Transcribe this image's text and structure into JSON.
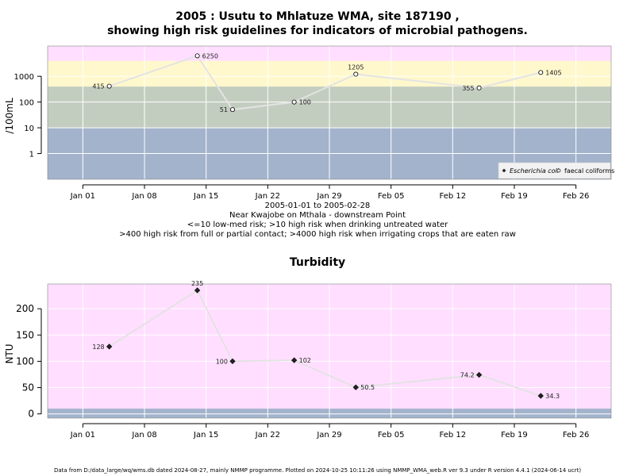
{
  "header": {
    "title_line1": "2005 : Usutu to Mhlatuze WMA, site 187190 ,",
    "title_line2": "showing high risk guidelines for indicators of microbial pathogens."
  },
  "subtitle": {
    "date_range": "2005-01-01 to 2005-02-28",
    "location": "Near Kwajobe on Mthala - downstream Point",
    "guideline1": "<=10 low-med risk; >10 high risk when drinking untreated water",
    "guideline2": ">400 high risk from full or partial contact; >4000 high risk when irrigating crops that are eaten raw"
  },
  "turbidity_title": "Turbidity",
  "footer": "Data from D:/data_large/wq/wms.db dated 2024-08-27, mainly NMMP programme. Plotted on 2024-10-25 10:11:26 using NMMP_WMA_web.R ver 9.3 under R version 4.4.1 (2024-06-14 ucrt)",
  "colors": {
    "band_low": "#a3b3cc",
    "band_mid": "#c3cdbf",
    "band_high": "#fff8cc",
    "band_top": "#ffdeff",
    "line": "#e3e3e3",
    "grid": "#ffffff",
    "axis": "#000000"
  },
  "chart_data": [
    {
      "type": "line",
      "title": "2005 : Usutu to Mhlatuze WMA, site 187190 , showing high risk guidelines for indicators of microbial pathogens.",
      "ylabel": "/100mL",
      "yscale": "log",
      "ylim": [
        0.1,
        15000
      ],
      "yticks": [
        1,
        10,
        100,
        1000
      ],
      "ytick_labels": [
        "1",
        "10",
        "100",
        "1000"
      ],
      "xlim": [
        "2004-12-28",
        "2005-03-02"
      ],
      "xticks": [
        "2005-01-01",
        "2005-01-08",
        "2005-01-15",
        "2005-01-22",
        "2005-01-29",
        "2005-02-05",
        "2005-02-12",
        "2005-02-19",
        "2005-02-26"
      ],
      "xtick_labels": [
        "Jan 01",
        "Jan 08",
        "Jan 15",
        "Jan 22",
        "Jan 29",
        "Feb 05",
        "Feb 12",
        "Feb 19",
        "Feb 26"
      ],
      "bands": [
        {
          "from": 0.1,
          "to": 10
        },
        {
          "from": 10,
          "to": 400
        },
        {
          "from": 400,
          "to": 4000
        },
        {
          "from": 4000,
          "to": 15000
        }
      ],
      "series": [
        {
          "name": "faecal coliforms",
          "marker": "open-circle",
          "points": [
            {
              "x": "2005-01-04",
              "y": 415,
              "label": "415",
              "label_side": "left"
            },
            {
              "x": "2005-01-14",
              "y": 6250,
              "label": "6250",
              "label_side": "right"
            },
            {
              "x": "2005-01-18",
              "y": 51,
              "label": "51",
              "label_side": "left"
            },
            {
              "x": "2005-01-25",
              "y": 100,
              "label": "100",
              "label_side": "right"
            },
            {
              "x": "2005-02-01",
              "y": 1205,
              "label": "1205",
              "label_side": "above"
            },
            {
              "x": "2005-02-15",
              "y": 355,
              "label": "355",
              "label_side": "left"
            },
            {
              "x": "2005-02-22",
              "y": 1405,
              "label": "1405",
              "label_side": "right"
            }
          ]
        }
      ],
      "legend": {
        "placement": "bottom-right",
        "entries": [
          {
            "label": "Escherichia coli",
            "marker": "filled-diamond",
            "italic": true
          },
          {
            "label": "faecal coliforms",
            "marker": "open-circle",
            "italic": false
          }
        ]
      },
      "grid": true
    },
    {
      "type": "line",
      "title": "Turbidity",
      "ylabel": "NTU",
      "ylim": [
        -8,
        247
      ],
      "yticks": [
        0,
        50,
        100,
        150,
        200
      ],
      "ytick_labels": [
        "0",
        "50",
        "100",
        "150",
        "200"
      ],
      "xlim": [
        "2004-12-28",
        "2005-03-02"
      ],
      "xticks": [
        "2005-01-01",
        "2005-01-08",
        "2005-01-15",
        "2005-01-22",
        "2005-01-29",
        "2005-02-05",
        "2005-02-12",
        "2005-02-19",
        "2005-02-26"
      ],
      "xtick_labels": [
        "Jan 01",
        "Jan 08",
        "Jan 15",
        "Jan 22",
        "Jan 29",
        "Feb 05",
        "Feb 12",
        "Feb 19",
        "Feb 26"
      ],
      "bands": [
        {
          "from": -8,
          "to": 10
        },
        {
          "from": 10,
          "to": 247
        }
      ],
      "series": [
        {
          "marker": "filled-diamond",
          "points": [
            {
              "x": "2005-01-04",
              "y": 128,
              "label": "128",
              "label_side": "left"
            },
            {
              "x": "2005-01-14",
              "y": 235,
              "label": "235",
              "label_side": "above"
            },
            {
              "x": "2005-01-18",
              "y": 100,
              "label": "100",
              "label_side": "left"
            },
            {
              "x": "2005-01-25",
              "y": 102,
              "label": "102",
              "label_side": "right"
            },
            {
              "x": "2005-02-01",
              "y": 50.5,
              "label": "50.5",
              "label_side": "right"
            },
            {
              "x": "2005-02-15",
              "y": 74.2,
              "label": "74.2",
              "label_side": "left"
            },
            {
              "x": "2005-02-22",
              "y": 34.3,
              "label": "34.3",
              "label_side": "right"
            }
          ]
        }
      ],
      "grid": true
    }
  ]
}
